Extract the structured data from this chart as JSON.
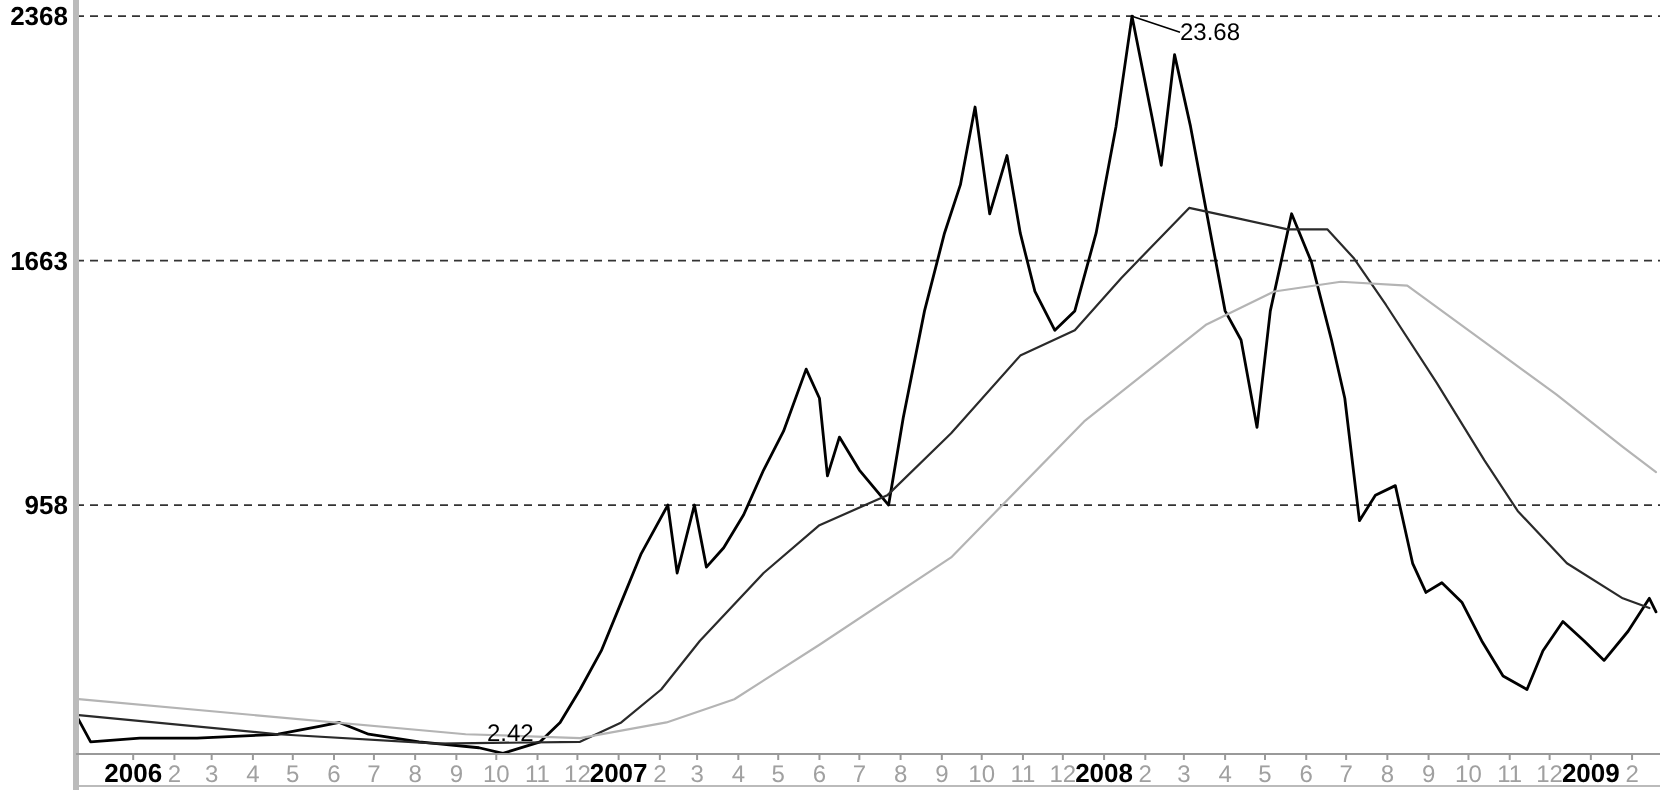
{
  "chart_data": {
    "type": "line",
    "xlim": [
      "2005-12-03",
      "2009-03-08"
    ],
    "ylim": [
      240,
      2380
    ],
    "yticks": [
      958,
      1663,
      2368
    ],
    "xticks": [
      {
        "value": "2006-01-15",
        "label": "2006"
      },
      {
        "value": "2006-02-15",
        "label": "2"
      },
      {
        "value": "2006-03-15",
        "label": "3"
      },
      {
        "value": "2006-04-15",
        "label": "4"
      },
      {
        "value": "2006-05-15",
        "label": "5"
      },
      {
        "value": "2006-06-15",
        "label": "6"
      },
      {
        "value": "2006-07-15",
        "label": "7"
      },
      {
        "value": "2006-08-15",
        "label": "8"
      },
      {
        "value": "2006-09-15",
        "label": "9"
      },
      {
        "value": "2006-10-15",
        "label": "10"
      },
      {
        "value": "2006-11-15",
        "label": "11"
      },
      {
        "value": "2006-12-15",
        "label": "12"
      },
      {
        "value": "2007-01-15",
        "label": "2007"
      },
      {
        "value": "2007-02-15",
        "label": "2"
      },
      {
        "value": "2007-03-15",
        "label": "3"
      },
      {
        "value": "2007-04-15",
        "label": "4"
      },
      {
        "value": "2007-05-15",
        "label": "5"
      },
      {
        "value": "2007-06-15",
        "label": "6"
      },
      {
        "value": "2007-07-15",
        "label": "7"
      },
      {
        "value": "2007-08-15",
        "label": "8"
      },
      {
        "value": "2007-09-15",
        "label": "9"
      },
      {
        "value": "2007-10-15",
        "label": "10"
      },
      {
        "value": "2007-11-15",
        "label": "11"
      },
      {
        "value": "2007-12-15",
        "label": "12"
      },
      {
        "value": "2008-01-15",
        "label": "2008"
      },
      {
        "value": "2008-02-15",
        "label": "2"
      },
      {
        "value": "2008-03-15",
        "label": "3"
      },
      {
        "value": "2008-04-15",
        "label": "4"
      },
      {
        "value": "2008-05-15",
        "label": "5"
      },
      {
        "value": "2008-06-15",
        "label": "6"
      },
      {
        "value": "2008-07-15",
        "label": "7"
      },
      {
        "value": "2008-08-15",
        "label": "8"
      },
      {
        "value": "2008-09-15",
        "label": "9"
      },
      {
        "value": "2008-10-15",
        "label": "10"
      },
      {
        "value": "2008-11-15",
        "label": "11"
      },
      {
        "value": "2008-12-15",
        "label": "12"
      },
      {
        "value": "2009-01-15",
        "label": "2009"
      },
      {
        "value": "2009-02-15",
        "label": "2"
      }
    ],
    "grid": "y",
    "line_style": "solid",
    "series": [
      {
        "color": "#000000",
        "x": [
          "2005-12-03",
          "2005-12-14",
          "2006-01-20",
          "2006-03-04",
          "2006-05-04",
          "2006-06-04",
          "2006-06-19",
          "2006-07-11",
          "2006-08-18",
          "2006-10-02",
          "2006-10-20",
          "2006-11-17",
          "2006-12-02",
          "2006-12-17",
          "2007-01-02",
          "2007-01-17",
          "2007-02-01",
          "2007-02-21",
          "2007-02-28",
          "2007-03-13",
          "2007-03-22",
          "2007-04-04",
          "2007-04-19",
          "2007-05-04",
          "2007-05-19",
          "2007-06-05",
          "2007-06-15",
          "2007-06-21",
          "2007-06-30",
          "2007-07-15",
          "2007-08-06",
          "2007-08-17",
          "2007-09-02",
          "2007-09-17",
          "2007-09-29",
          "2007-10-10",
          "2007-10-21",
          "2007-11-03",
          "2007-11-13",
          "2007-11-24",
          "2007-12-09",
          "2007-12-24",
          "2008-01-09",
          "2008-01-24",
          "2008-02-05",
          "2008-02-20",
          "2008-02-27",
          "2008-03-08",
          "2008-03-20",
          "2008-04-04",
          "2008-04-15",
          "2008-04-27",
          "2008-05-09",
          "2008-05-19",
          "2008-06-04",
          "2008-06-19",
          "2008-07-04",
          "2008-07-14",
          "2008-07-25",
          "2008-08-06",
          "2008-08-21",
          "2008-09-03",
          "2008-09-13",
          "2008-09-25",
          "2008-10-10",
          "2008-10-25",
          "2008-11-10",
          "2008-11-28",
          "2008-12-10",
          "2008-12-25",
          "2009-01-10",
          "2009-01-25",
          "2009-02-12",
          "2009-02-28",
          "2009-03-05"
        ],
        "values": [
          353,
          275,
          286,
          286,
          297,
          320,
          331,
          297,
          275,
          258,
          242,
          275,
          331,
          426,
          538,
          678,
          818,
          958,
          762,
          958,
          779,
          835,
          930,
          1059,
          1171,
          1350,
          1266,
          1042,
          1154,
          1059,
          958,
          1210,
          1518,
          1742,
          1882,
          2106,
          1798,
          1966,
          1742,
          1574,
          1462,
          1518,
          1742,
          2050,
          2368,
          2078,
          1938,
          2257,
          2050,
          1742,
          1518,
          1434,
          1182,
          1518,
          1798,
          1658,
          1434,
          1266,
          913,
          986,
          1014,
          790,
          706,
          734,
          678,
          566,
          465,
          426,
          538,
          622,
          566,
          510,
          594,
          689,
          650
        ]
      },
      {
        "color": "#2a2a2a",
        "x": [
          "2005-12-03",
          "2006-05-04",
          "2006-09-01",
          "2006-12-17",
          "2007-01-17",
          "2007-02-16",
          "2007-03-17",
          "2007-05-04",
          "2007-06-15",
          "2007-08-05",
          "2007-09-22",
          "2007-11-13",
          "2007-12-24",
          "2008-01-28",
          "2008-03-19",
          "2008-04-22",
          "2008-06-01",
          "2008-07-01",
          "2008-07-21",
          "2008-08-14",
          "2008-09-21",
          "2008-10-27",
          "2008-11-21",
          "2008-12-28",
          "2009-02-08",
          "2009-02-28"
        ],
        "values": [
          353,
          297,
          270,
          275,
          331,
          426,
          566,
          762,
          900,
          986,
          1165,
          1389,
          1462,
          1613,
          1815,
          1787,
          1753,
          1753,
          1669,
          1535,
          1311,
          1087,
          941,
          790,
          689,
          661
        ]
      },
      {
        "color": "#b4b4b4",
        "x": [
          "2005-12-05",
          "2006-09-22",
          "2006-12-17",
          "2007-02-20",
          "2007-04-12",
          "2007-06-15",
          "2007-09-22",
          "2007-12-31",
          "2008-04-01",
          "2008-05-22",
          "2008-07-11",
          "2008-08-30",
          "2008-10-29",
          "2008-12-20",
          "2009-02-08",
          "2009-03-05"
        ],
        "values": [
          398,
          297,
          286,
          331,
          398,
          555,
          807,
          1199,
          1479,
          1574,
          1602,
          1591,
          1423,
          1277,
          1126,
          1053
        ]
      }
    ],
    "annotations": [
      {
        "text": "23.68",
        "x": "2008-02-05",
        "y": 2368
      },
      {
        "text": "2.42",
        "x": "2006-10-20",
        "y": 242
      }
    ]
  }
}
